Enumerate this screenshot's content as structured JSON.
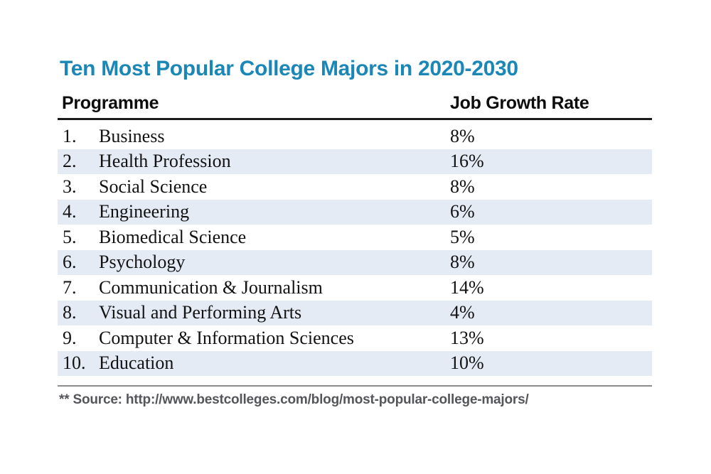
{
  "title": "Ten Most Popular College Majors in 2020-2030",
  "table": {
    "columns": [
      "Programme",
      "Job Growth Rate"
    ],
    "rows": [
      {
        "rank": "1.",
        "programme": "Business",
        "growth": "8%"
      },
      {
        "rank": "2.",
        "programme": "Health Profession",
        "growth": "16%"
      },
      {
        "rank": "3.",
        "programme": "Social Science",
        "growth": "8%"
      },
      {
        "rank": "4.",
        "programme": "Engineering",
        "growth": "6%"
      },
      {
        "rank": "5.",
        "programme": "Biomedical Science",
        "growth": "5%"
      },
      {
        "rank": "6.",
        "programme": "Psychology",
        "growth": "8%"
      },
      {
        "rank": "7.",
        "programme": "Communication & Journalism",
        "growth": "14%"
      },
      {
        "rank": "8.",
        "programme": "Visual and Performing Arts",
        "growth": "4%"
      },
      {
        "rank": "9.",
        "programme": "Computer & Information Sciences",
        "growth": "13%"
      },
      {
        "rank": "10.",
        "programme": "Education",
        "growth": "10%"
      }
    ]
  },
  "source": "** Source: http://www.bestcolleges.com/blog/most-popular-college-majors/",
  "colors": {
    "accent": "#1b87b7",
    "row-alt": "#e4ebf5",
    "rule-gray": "#8a8c8e",
    "source-text": "#55565a"
  },
  "chart_data": {
    "type": "table",
    "title": "Ten Most Popular College Majors in 2020-2030",
    "columns": [
      "Programme",
      "Job Growth Rate"
    ],
    "categories": [
      "Business",
      "Health Profession",
      "Social Science",
      "Engineering",
      "Biomedical Science",
      "Psychology",
      "Communication & Journalism",
      "Visual and Performing Arts",
      "Computer & Information Sciences",
      "Education"
    ],
    "values": [
      8,
      16,
      8,
      6,
      5,
      8,
      14,
      4,
      13,
      10
    ],
    "unit": "%",
    "row_striping": "even rows shaded light blue",
    "source": "** Source: http://www.bestcolleges.com/blog/most-popular-college-majors/"
  }
}
